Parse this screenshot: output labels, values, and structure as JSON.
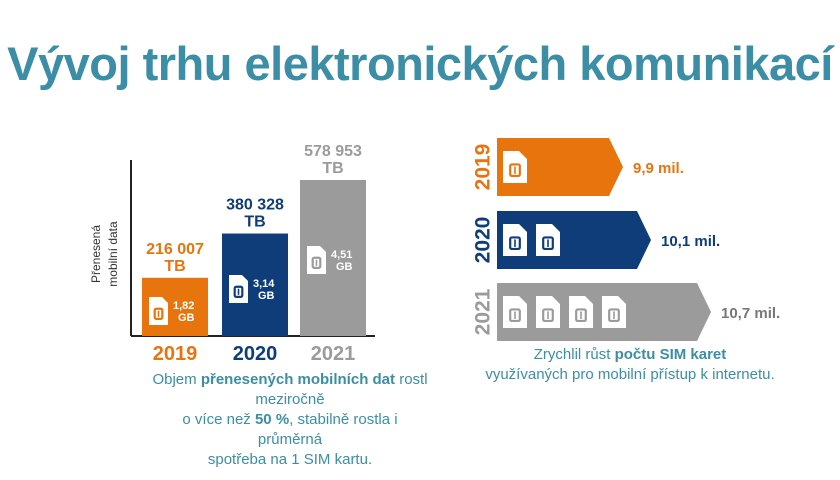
{
  "title": "Vývoj trhu elektronických komunikací",
  "colors": {
    "title": "#3b8ea5",
    "y2019": "#e8740e",
    "y2020": "#0f3d7a",
    "y2021": "#9b9b9b",
    "caption": "#3b8ea5"
  },
  "chart_data": [
    {
      "type": "bar",
      "ylabel_lines": [
        "Přenesená",
        "mobilní data"
      ],
      "categories": [
        "2019",
        "2020",
        "2021"
      ],
      "values": [
        216007,
        380328,
        578953
      ],
      "value_labels": [
        [
          "216 007",
          "TB"
        ],
        [
          "380 328",
          "TB"
        ],
        [
          "578 953",
          "TB"
        ]
      ],
      "per_sim_labels": [
        [
          "1,82",
          "GB"
        ],
        [
          "3,14",
          "GB"
        ],
        [
          "4,51",
          "GB"
        ]
      ],
      "per_sim_values": [
        1.82,
        3.14,
        4.51
      ],
      "ylim": [
        0,
        600000
      ]
    },
    {
      "type": "bar",
      "orientation": "horizontal",
      "categories": [
        "2019",
        "2020",
        "2021"
      ],
      "values": [
        9.9,
        10.1,
        10.7
      ],
      "value_labels": [
        "9,9 mil.",
        "10,1 mil.",
        "10,7 mil."
      ],
      "sim_icon_counts": [
        1,
        2,
        4
      ],
      "icon": "sim-card-icon"
    }
  ],
  "captions": {
    "left": {
      "p1": "Objem ",
      "b1": "přenesených mobilních dat",
      "p2": " rostl meziročně",
      "p3": "o více než ",
      "b2": "50 %",
      "p4": ", stabilně rostla i průměrná",
      "p5": "spotřeba na 1 SIM kartu."
    },
    "right": {
      "p1": "Zrychlil růst ",
      "b1": "počtu SIM karet",
      "p2": "využívaných pro mobilní přístup k internetu."
    }
  }
}
